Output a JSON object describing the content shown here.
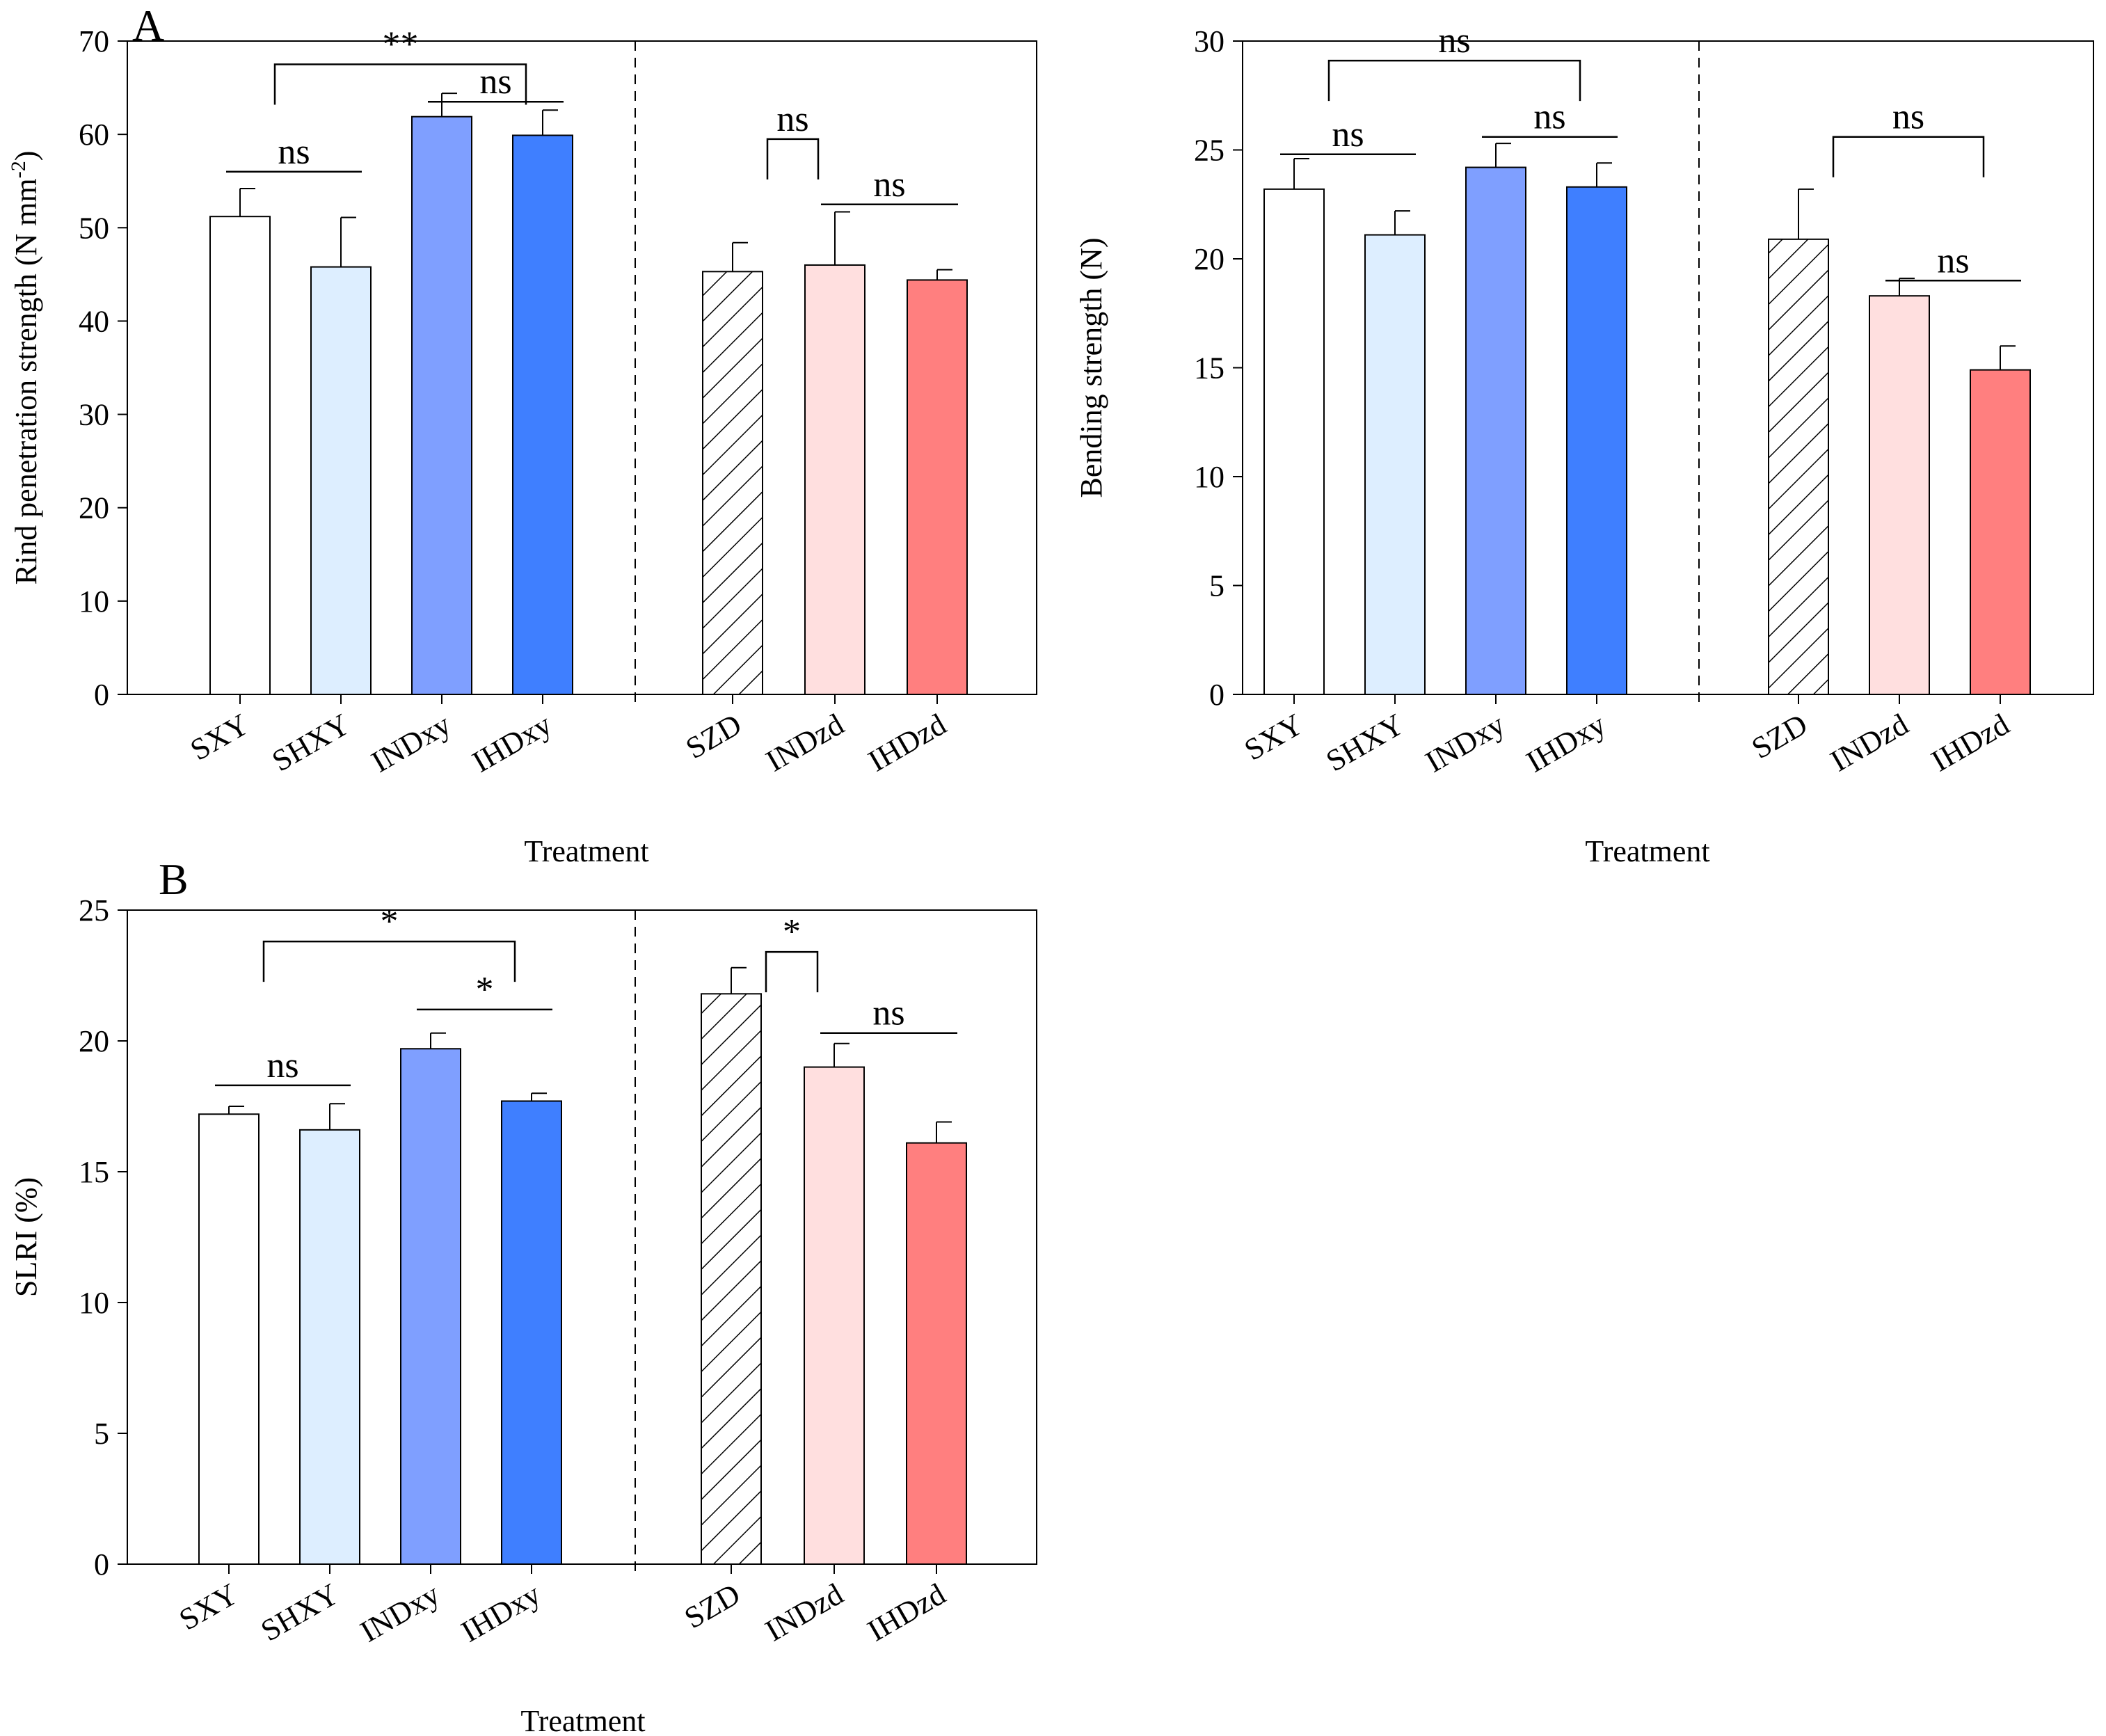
{
  "figure": {
    "panel_letters": [
      "A",
      "B"
    ],
    "colors": {
      "SXY": "#ffffff",
      "SHXY": "#ddeeff",
      "INDxy": "#7f9fff",
      "IHDxy": "#3f7fff",
      "SZD": "hatch",
      "INDzd": "#ffdfdf",
      "IHDzd": "#ff7f7f"
    }
  },
  "chart_data": [
    {
      "id": "rind",
      "type": "bar",
      "panel_letter": "A",
      "categories": [
        "SXY",
        "SHXY",
        "INDxy",
        "IHDxy",
        "SZD",
        "INDzd",
        "IHDzd"
      ],
      "values": [
        51.2,
        45.8,
        61.9,
        59.9,
        45.3,
        46.0,
        44.4
      ],
      "errors": [
        3.0,
        5.3,
        2.5,
        2.7,
        3.1,
        5.7,
        1.1
      ],
      "xlabel": "Treatment",
      "ylabel": "Rind penetration strength (N mm",
      "ylabel_sup": "-2",
      "ylabel_tail": ")",
      "ylim": [
        0,
        70
      ],
      "yticks": [
        0,
        10,
        20,
        30,
        40,
        50,
        60,
        70
      ],
      "group_divider_after": "IHDxy",
      "significance": [
        {
          "from": "SXY",
          "to": "IHDxy",
          "label": "**",
          "style": "bracket",
          "y": 67.5
        },
        {
          "from": "SXY",
          "to": "SHXY",
          "label": "ns",
          "style": "line",
          "y": 56
        },
        {
          "from": "INDxy",
          "to": "IHDxy",
          "label": "ns",
          "style": "line",
          "y": 63.5
        },
        {
          "from": "SZD",
          "to": "INDzd",
          "label": "ns",
          "style": "bracket",
          "y": 59.5
        },
        {
          "from": "INDzd",
          "to": "IHDzd",
          "label": "ns",
          "style": "line",
          "y": 52.5
        }
      ]
    },
    {
      "id": "bending",
      "type": "bar",
      "panel_letter": "",
      "categories": [
        "SXY",
        "SHXY",
        "INDxy",
        "IHDxy",
        "SZD",
        "INDzd",
        "IHDzd"
      ],
      "values": [
        23.2,
        21.1,
        24.2,
        23.3,
        20.9,
        18.3,
        14.9
      ],
      "errors": [
        1.4,
        1.1,
        1.1,
        1.1,
        2.3,
        0.8,
        1.1
      ],
      "xlabel": "Treatment",
      "ylabel": "Bending strength (N)",
      "ylim": [
        0,
        30
      ],
      "yticks": [
        0,
        5,
        10,
        15,
        20,
        25,
        30
      ],
      "group_divider_after": "IHDxy",
      "significance": [
        {
          "from": "SXY",
          "to": "IHDxy",
          "label": "ns",
          "style": "bracket",
          "y": 29.1
        },
        {
          "from": "SXY",
          "to": "SHXY",
          "label": "ns",
          "style": "line",
          "y": 24.8
        },
        {
          "from": "INDxy",
          "to": "IHDxy",
          "label": "ns",
          "style": "line",
          "y": 25.6
        },
        {
          "from": "SZD",
          "to": "IHDzd",
          "label": "ns",
          "style": "bracket",
          "y": 25.6
        },
        {
          "from": "INDzd",
          "to": "IHDzd",
          "label": "ns",
          "style": "line",
          "y": 19.0
        }
      ]
    },
    {
      "id": "slri",
      "type": "bar",
      "panel_letter": "B",
      "categories": [
        "SXY",
        "SHXY",
        "INDxy",
        "IHDxy",
        "SZD",
        "INDzd",
        "IHDzd"
      ],
      "values": [
        17.2,
        16.6,
        19.7,
        17.7,
        21.8,
        19.0,
        16.1
      ],
      "errors": [
        0.3,
        1.0,
        0.6,
        0.3,
        1.0,
        0.9,
        0.8
      ],
      "xlabel": "Treatment",
      "ylabel": "SLRI (%)",
      "ylim": [
        0,
        25
      ],
      "yticks": [
        0,
        5,
        10,
        15,
        20,
        25
      ],
      "group_divider_after": "IHDxy",
      "significance": [
        {
          "from": "SXY",
          "to": "IHDxy",
          "label": "*",
          "style": "bracket",
          "y": 23.8
        },
        {
          "from": "INDxy",
          "to": "IHDxy",
          "label": "*",
          "style": "line",
          "y": 21.2
        },
        {
          "from": "SXY",
          "to": "SHXY",
          "label": "ns",
          "style": "line",
          "y": 18.3
        },
        {
          "from": "SZD",
          "to": "INDzd",
          "label": "*",
          "style": "bracket",
          "y": 23.4
        },
        {
          "from": "INDzd",
          "to": "IHDzd",
          "label": "ns",
          "style": "line",
          "y": 20.3
        }
      ]
    }
  ]
}
